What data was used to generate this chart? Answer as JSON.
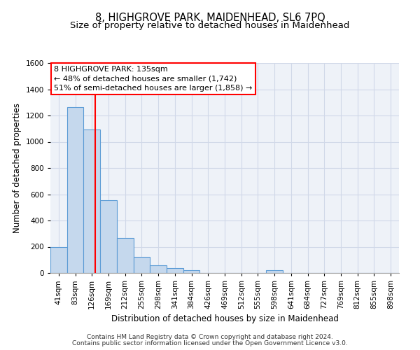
{
  "title1": "8, HIGHGROVE PARK, MAIDENHEAD, SL6 7PQ",
  "title2": "Size of property relative to detached houses in Maidenhead",
  "xlabel": "Distribution of detached houses by size in Maidenhead",
  "ylabel": "Number of detached properties",
  "footer1": "Contains HM Land Registry data © Crown copyright and database right 2024.",
  "footer2": "Contains public sector information licensed under the Open Government Licence v3.0.",
  "categories": [
    "41sqm",
    "83sqm",
    "126sqm",
    "169sqm",
    "212sqm",
    "255sqm",
    "298sqm",
    "341sqm",
    "384sqm",
    "426sqm",
    "469sqm",
    "512sqm",
    "555sqm",
    "598sqm",
    "641sqm",
    "684sqm",
    "727sqm",
    "769sqm",
    "812sqm",
    "855sqm",
    "898sqm"
  ],
  "values": [
    195,
    1265,
    1095,
    555,
    265,
    125,
    60,
    35,
    20,
    0,
    0,
    0,
    0,
    20,
    0,
    0,
    0,
    0,
    0,
    0,
    0
  ],
  "bar_color": "#c5d8ed",
  "bar_edge_color": "#5b9bd5",
  "grid_color": "#d0d8e8",
  "background_color": "#eef2f8",
  "red_line_x": 2.18,
  "annotation_title": "8 HIGHGROVE PARK: 135sqm",
  "annotation_line1": "← 48% of detached houses are smaller (1,742)",
  "annotation_line2": "51% of semi-detached houses are larger (1,858) →",
  "ylim": [
    0,
    1600
  ],
  "yticks": [
    0,
    200,
    400,
    600,
    800,
    1000,
    1200,
    1400,
    1600
  ],
  "title1_fontsize": 10.5,
  "title2_fontsize": 9.5,
  "xlabel_fontsize": 8.5,
  "ylabel_fontsize": 8.5,
  "tick_fontsize": 7.5,
  "annotation_fontsize": 8,
  "footer_fontsize": 6.5
}
